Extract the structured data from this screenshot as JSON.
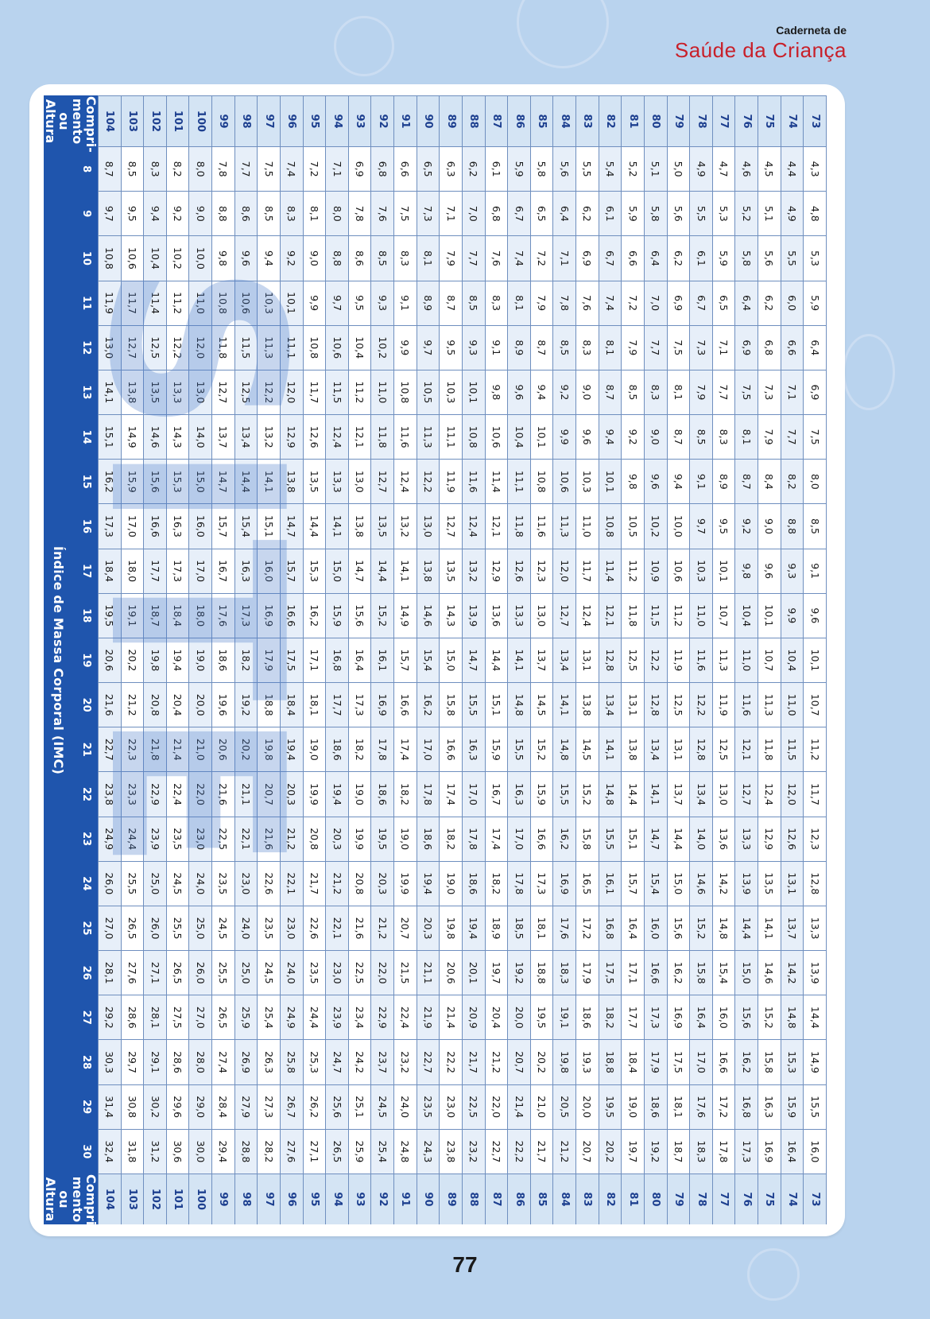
{
  "header": {
    "line1": "Caderneta de",
    "line2": "Saúde da Criança"
  },
  "page_number": "77",
  "watermark": "SITE",
  "table": {
    "row_header": "Compri-mento ou Altura",
    "imc_label": "Índice de Massa Corporal (IMC)",
    "columns": [
      "8",
      "9",
      "10",
      "11",
      "12",
      "13",
      "14",
      "15",
      "16",
      "17",
      "18",
      "19",
      "20",
      "21",
      "22",
      "23",
      "24",
      "25",
      "26",
      "27",
      "28",
      "29",
      "30"
    ],
    "rows": [
      {
        "h": "73",
        "v": [
          "4,3",
          "4,8",
          "5,3",
          "5,9",
          "6,4",
          "6,9",
          "7,5",
          "8,0",
          "8,5",
          "9,1",
          "9,6",
          "10,1",
          "10,7",
          "11,2",
          "11,7",
          "12,3",
          "12,8",
          "13,3",
          "13,9",
          "14,4",
          "14,9",
          "15,5",
          "16,0"
        ]
      },
      {
        "h": "74",
        "v": [
          "4,4",
          "4,9",
          "5,5",
          "6,0",
          "6,6",
          "7,1",
          "7,7",
          "8,2",
          "8,8",
          "9,3",
          "9,9",
          "10,4",
          "11,0",
          "11,5",
          "12,0",
          "12,6",
          "13,1",
          "13,7",
          "14,2",
          "14,8",
          "15,3",
          "15,9",
          "16,4"
        ]
      },
      {
        "h": "75",
        "v": [
          "4,5",
          "5,1",
          "5,6",
          "6,2",
          "6,8",
          "7,3",
          "7,9",
          "8,4",
          "9,0",
          "9,6",
          "10,1",
          "10,7",
          "11,3",
          "11,8",
          "12,4",
          "12,9",
          "13,5",
          "14,1",
          "14,6",
          "15,2",
          "15,8",
          "16,3",
          "16,9"
        ]
      },
      {
        "h": "76",
        "v": [
          "4,6",
          "5,2",
          "5,8",
          "6,4",
          "6,9",
          "7,5",
          "8,1",
          "8,7",
          "9,2",
          "9,8",
          "10,4",
          "11,0",
          "11,6",
          "12,1",
          "12,7",
          "13,3",
          "13,9",
          "14,4",
          "15,0",
          "15,6",
          "16,2",
          "16,8",
          "17,3"
        ]
      },
      {
        "h": "77",
        "v": [
          "4,7",
          "5,3",
          "5,9",
          "6,5",
          "7,1",
          "7,7",
          "8,3",
          "8,9",
          "9,5",
          "10,1",
          "10,7",
          "11,3",
          "11,9",
          "12,5",
          "13,0",
          "13,6",
          "14,2",
          "14,8",
          "15,4",
          "16,0",
          "16,6",
          "17,2",
          "17,8"
        ]
      },
      {
        "h": "78",
        "v": [
          "4,9",
          "5,5",
          "6,1",
          "6,7",
          "7,3",
          "7,9",
          "8,5",
          "9,1",
          "9,7",
          "10,3",
          "11,0",
          "11,6",
          "12,2",
          "12,8",
          "13,4",
          "14,0",
          "14,6",
          "15,2",
          "15,8",
          "16,4",
          "17,0",
          "17,6",
          "18,3"
        ]
      },
      {
        "h": "79",
        "v": [
          "5,0",
          "5,6",
          "6,2",
          "6,9",
          "7,5",
          "8,1",
          "8,7",
          "9,4",
          "10,0",
          "10,6",
          "11,2",
          "11,9",
          "12,5",
          "13,1",
          "13,7",
          "14,4",
          "15,0",
          "15,6",
          "16,2",
          "16,9",
          "17,5",
          "18,1",
          "18,7"
        ]
      },
      {
        "h": "80",
        "v": [
          "5,1",
          "5,8",
          "6,4",
          "7,0",
          "7,7",
          "8,3",
          "9,0",
          "9,6",
          "10,2",
          "10,9",
          "11,5",
          "12,2",
          "12,8",
          "13,4",
          "14,1",
          "14,7",
          "15,4",
          "16,0",
          "16,6",
          "17,3",
          "17,9",
          "18,6",
          "19,2"
        ]
      },
      {
        "h": "81",
        "v": [
          "5,2",
          "5,9",
          "6,6",
          "7,2",
          "7,9",
          "8,5",
          "9,2",
          "9,8",
          "10,5",
          "11,2",
          "11,8",
          "12,5",
          "13,1",
          "13,8",
          "14,4",
          "15,1",
          "15,7",
          "16,4",
          "17,1",
          "17,7",
          "18,4",
          "19,0",
          "19,7"
        ]
      },
      {
        "h": "82",
        "v": [
          "5,4",
          "6,1",
          "6,7",
          "7,4",
          "8,1",
          "8,7",
          "9,4",
          "10,1",
          "10,8",
          "11,4",
          "12,1",
          "12,8",
          "13,4",
          "14,1",
          "14,8",
          "15,5",
          "16,1",
          "16,8",
          "17,5",
          "18,2",
          "18,8",
          "19,5",
          "20,2"
        ]
      },
      {
        "h": "83",
        "v": [
          "5,5",
          "6,2",
          "6,9",
          "7,6",
          "8,3",
          "9,0",
          "9,6",
          "10,3",
          "11,0",
          "11,7",
          "12,4",
          "13,1",
          "13,8",
          "14,5",
          "15,2",
          "15,8",
          "16,5",
          "17,2",
          "17,9",
          "18,6",
          "19,3",
          "20,0",
          "20,7"
        ]
      },
      {
        "h": "84",
        "v": [
          "5,6",
          "6,4",
          "7,1",
          "7,8",
          "8,5",
          "9,2",
          "9,9",
          "10,6",
          "11,3",
          "12,0",
          "12,7",
          "13,4",
          "14,1",
          "14,8",
          "15,5",
          "16,2",
          "16,9",
          "17,6",
          "18,3",
          "19,1",
          "19,8",
          "20,5",
          "21,2"
        ]
      },
      {
        "h": "85",
        "v": [
          "5,8",
          "6,5",
          "7,2",
          "7,9",
          "8,7",
          "9,4",
          "10,1",
          "10,8",
          "11,6",
          "12,3",
          "13,0",
          "13,7",
          "14,5",
          "15,2",
          "15,9",
          "16,6",
          "17,3",
          "18,1",
          "18,8",
          "19,5",
          "20,2",
          "21,0",
          "21,7"
        ]
      },
      {
        "h": "86",
        "v": [
          "5,9",
          "6,7",
          "7,4",
          "8,1",
          "8,9",
          "9,6",
          "10,4",
          "11,1",
          "11,8",
          "12,6",
          "13,3",
          "14,1",
          "14,8",
          "15,5",
          "16,3",
          "17,0",
          "17,8",
          "18,5",
          "19,2",
          "20,0",
          "20,7",
          "21,4",
          "22,2"
        ]
      },
      {
        "h": "87",
        "v": [
          "6,1",
          "6,8",
          "7,6",
          "8,3",
          "9,1",
          "9,8",
          "10,6",
          "11,4",
          "12,1",
          "12,9",
          "13,6",
          "14,4",
          "15,1",
          "15,9",
          "16,7",
          "17,4",
          "18,2",
          "18,9",
          "19,7",
          "20,4",
          "21,2",
          "22,0",
          "22,7"
        ]
      },
      {
        "h": "88",
        "v": [
          "6,2",
          "7,0",
          "7,7",
          "8,5",
          "9,3",
          "10,1",
          "10,8",
          "11,6",
          "12,4",
          "13,2",
          "13,9",
          "14,7",
          "15,5",
          "16,3",
          "17,0",
          "17,8",
          "18,6",
          "19,4",
          "20,1",
          "20,9",
          "21,7",
          "22,5",
          "23,2"
        ]
      },
      {
        "h": "89",
        "v": [
          "6,3",
          "7,1",
          "7,9",
          "8,7",
          "9,5",
          "10,3",
          "11,1",
          "11,9",
          "12,7",
          "13,5",
          "14,3",
          "15,0",
          "15,8",
          "16,6",
          "17,4",
          "18,2",
          "19,0",
          "19,8",
          "20,6",
          "21,4",
          "22,2",
          "23,0",
          "23,8"
        ]
      },
      {
        "h": "90",
        "v": [
          "6,5",
          "7,3",
          "8,1",
          "8,9",
          "9,7",
          "10,5",
          "11,3",
          "12,2",
          "13,0",
          "13,8",
          "14,6",
          "15,4",
          "16,2",
          "17,0",
          "17,8",
          "18,6",
          "19,4",
          "20,3",
          "21,1",
          "21,9",
          "22,7",
          "23,5",
          "24,3"
        ]
      },
      {
        "h": "91",
        "v": [
          "6,6",
          "7,5",
          "8,3",
          "9,1",
          "9,9",
          "10,8",
          "11,6",
          "12,4",
          "13,2",
          "14,1",
          "14,9",
          "15,7",
          "16,6",
          "17,4",
          "18,2",
          "19,0",
          "19,9",
          "20,7",
          "21,5",
          "22,4",
          "23,2",
          "24,0",
          "24,8"
        ]
      },
      {
        "h": "92",
        "v": [
          "6,8",
          "7,6",
          "8,5",
          "9,3",
          "10,2",
          "11,0",
          "11,8",
          "12,7",
          "13,5",
          "14,4",
          "15,2",
          "16,1",
          "16,9",
          "17,8",
          "18,6",
          "19,5",
          "20,3",
          "21,2",
          "22,0",
          "22,9",
          "23,7",
          "24,5",
          "25,4"
        ]
      },
      {
        "h": "93",
        "v": [
          "6,9",
          "7,8",
          "8,6",
          "9,5",
          "10,4",
          "11,2",
          "12,1",
          "13,0",
          "13,8",
          "14,7",
          "15,6",
          "16,4",
          "17,3",
          "18,2",
          "19,0",
          "19,9",
          "20,8",
          "21,6",
          "22,5",
          "23,4",
          "24,2",
          "25,1",
          "25,9"
        ]
      },
      {
        "h": "94",
        "v": [
          "7,1",
          "8,0",
          "8,8",
          "9,7",
          "10,6",
          "11,5",
          "12,4",
          "13,3",
          "14,1",
          "15,0",
          "15,9",
          "16,8",
          "17,7",
          "18,6",
          "19,4",
          "20,3",
          "21,2",
          "22,1",
          "23,0",
          "23,9",
          "24,7",
          "25,6",
          "26,5"
        ]
      },
      {
        "h": "95",
        "v": [
          "7,2",
          "8,1",
          "9,0",
          "9,9",
          "10,8",
          "11,7",
          "12,6",
          "13,5",
          "14,4",
          "15,3",
          "16,2",
          "17,1",
          "18,1",
          "19,0",
          "19,9",
          "20,8",
          "21,7",
          "22,6",
          "23,5",
          "24,4",
          "25,3",
          "26,2",
          "27,1"
        ]
      },
      {
        "h": "96",
        "v": [
          "7,4",
          "8,3",
          "9,2",
          "10,1",
          "11,1",
          "12,0",
          "12,9",
          "13,8",
          "14,7",
          "15,7",
          "16,6",
          "17,5",
          "18,4",
          "19,4",
          "20,3",
          "21,2",
          "22,1",
          "23,0",
          "24,0",
          "24,9",
          "25,8",
          "26,7",
          "27,6"
        ]
      },
      {
        "h": "97",
        "v": [
          "7,5",
          "8,5",
          "9,4",
          "10,3",
          "11,3",
          "12,2",
          "13,2",
          "14,1",
          "15,1",
          "16,0",
          "16,9",
          "17,9",
          "18,8",
          "19,8",
          "20,7",
          "21,6",
          "22,6",
          "23,5",
          "24,5",
          "25,4",
          "26,3",
          "27,3",
          "28,2"
        ]
      },
      {
        "h": "98",
        "v": [
          "7,7",
          "8,6",
          "9,6",
          "10,6",
          "11,5",
          "12,5",
          "13,4",
          "14,4",
          "15,4",
          "16,3",
          "17,3",
          "18,2",
          "19,2",
          "20,2",
          "21,1",
          "22,1",
          "23,0",
          "24,0",
          "25,0",
          "25,9",
          "26,9",
          "27,9",
          "28,8"
        ]
      },
      {
        "h": "99",
        "v": [
          "7,8",
          "8,8",
          "9,8",
          "10,8",
          "11,8",
          "12,7",
          "13,7",
          "14,7",
          "15,7",
          "16,7",
          "17,6",
          "18,6",
          "19,6",
          "20,6",
          "21,6",
          "22,5",
          "23,5",
          "24,5",
          "25,5",
          "26,5",
          "27,4",
          "28,4",
          "29,4"
        ]
      },
      {
        "h": "100",
        "v": [
          "8,0",
          "9,0",
          "10,0",
          "11,0",
          "12,0",
          "13,0",
          "14,0",
          "15,0",
          "16,0",
          "17,0",
          "18,0",
          "19,0",
          "20,0",
          "21,0",
          "22,0",
          "23,0",
          "24,0",
          "25,0",
          "26,0",
          "27,0",
          "28,0",
          "29,0",
          "30,0"
        ]
      },
      {
        "h": "101",
        "v": [
          "8,2",
          "9,2",
          "10,2",
          "11,2",
          "12,2",
          "13,3",
          "14,3",
          "15,3",
          "16,3",
          "17,3",
          "18,4",
          "19,4",
          "20,4",
          "21,4",
          "22,4",
          "23,5",
          "24,5",
          "25,5",
          "26,5",
          "27,5",
          "28,6",
          "29,6",
          "30,6"
        ]
      },
      {
        "h": "102",
        "v": [
          "8,3",
          "9,4",
          "10,4",
          "11,4",
          "12,5",
          "13,5",
          "14,6",
          "15,6",
          "16,6",
          "17,7",
          "18,7",
          "19,8",
          "20,8",
          "21,8",
          "22,9",
          "23,9",
          "25,0",
          "26,0",
          "27,1",
          "28,1",
          "29,1",
          "30,2",
          "31,2"
        ]
      },
      {
        "h": "103",
        "v": [
          "8,5",
          "9,5",
          "10,6",
          "11,7",
          "12,7",
          "13,8",
          "14,9",
          "15,9",
          "17,0",
          "18,0",
          "19,1",
          "20,2",
          "21,2",
          "22,3",
          "23,3",
          "24,4",
          "25,5",
          "26,5",
          "27,6",
          "28,6",
          "29,7",
          "30,8",
          "31,8"
        ]
      },
      {
        "h": "104",
        "v": [
          "8,7",
          "9,7",
          "10,8",
          "11,9",
          "13,0",
          "14,1",
          "15,1",
          "16,2",
          "17,3",
          "18,4",
          "19,5",
          "20,6",
          "21,6",
          "22,7",
          "23,8",
          "24,9",
          "26,0",
          "27,0",
          "28,1",
          "29,2",
          "30,3",
          "31,4",
          "32,4"
        ]
      }
    ]
  }
}
